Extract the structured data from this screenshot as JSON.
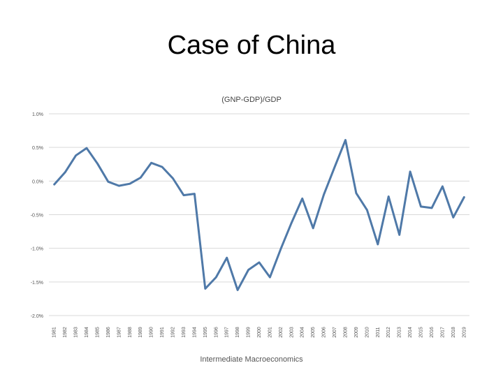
{
  "slide": {
    "title": "Case of China",
    "footer": "Intermediate Macroeconomics"
  },
  "chart_data": {
    "type": "line",
    "title": "(GNP-GDP)/GDP",
    "xlabel": "",
    "ylabel": "",
    "ylim": [
      -2.0,
      1.0
    ],
    "yticks": [
      1.0,
      0.5,
      0.0,
      -0.5,
      -1.0,
      -1.5,
      -2.0
    ],
    "ytick_labels": [
      "1.0%",
      "0.5%",
      "0.0%",
      "-0.5%",
      "-1.0%",
      "-1.5%",
      "-2.0%"
    ],
    "grid": true,
    "line_color": "#4f79a8",
    "x": [
      "1981",
      "1982",
      "1983",
      "1984",
      "1985",
      "1986",
      "1987",
      "1988",
      "1989",
      "1990",
      "1991",
      "1992",
      "1993",
      "1994",
      "1995",
      "1996",
      "1997",
      "1998",
      "1999",
      "2000",
      "2001",
      "2002",
      "2003",
      "2004",
      "2005",
      "2006",
      "2007",
      "2008",
      "2009",
      "2010",
      "2011",
      "2012",
      "2013",
      "2014",
      "2015",
      "2016",
      "2017",
      "2018",
      "2019"
    ],
    "series": [
      {
        "name": "",
        "values": [
          -0.05,
          0.13,
          0.38,
          0.49,
          0.26,
          -0.01,
          -0.07,
          -0.04,
          0.05,
          0.27,
          0.21,
          0.04,
          -0.21,
          -0.19,
          -1.6,
          -1.43,
          -1.14,
          -1.62,
          -1.32,
          -1.21,
          -1.43,
          -1.01,
          -0.62,
          -0.26,
          -0.7,
          -0.2,
          0.21,
          0.61,
          -0.18,
          -0.43,
          -0.94,
          -0.23,
          -0.8,
          0.14,
          -0.38,
          -0.4,
          -0.08,
          -0.54,
          -0.24
        ]
      }
    ]
  }
}
